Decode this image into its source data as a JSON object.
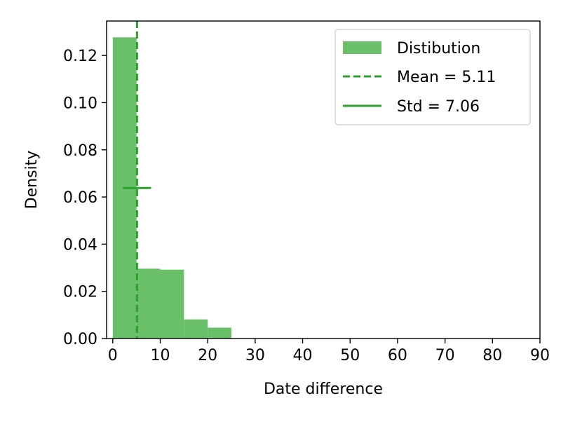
{
  "chart_data": {
    "type": "bar",
    "title": "",
    "xlabel": "Date difference",
    "ylabel": "Density",
    "xlim": [
      -1.3,
      90
    ],
    "ylim": [
      0,
      0.1346
    ],
    "x_ticks": [
      0,
      10,
      20,
      30,
      40,
      50,
      60,
      70,
      80,
      90
    ],
    "y_ticks": [
      0.0,
      0.02,
      0.04,
      0.06,
      0.08,
      0.1,
      0.12
    ],
    "x_tick_labels": [
      "0",
      "10",
      "20",
      "30",
      "40",
      "50",
      "60",
      "70",
      "80",
      "90"
    ],
    "y_tick_labels": [
      "0.00",
      "0.02",
      "0.04",
      "0.06",
      "0.08",
      "0.10",
      "0.12"
    ],
    "grid": false,
    "legend_position": "top-right",
    "series": [
      {
        "name": "Distibution",
        "kind": "histogram",
        "color": "#6abf69",
        "bins": [
          {
            "x0": 0,
            "x1": 5,
            "density": 0.1277
          },
          {
            "x0": 5,
            "x1": 10,
            "density": 0.0296
          },
          {
            "x0": 10,
            "x1": 15,
            "density": 0.0292
          },
          {
            "x0": 15,
            "x1": 20,
            "density": 0.0081
          },
          {
            "x0": 20,
            "x1": 25,
            "density": 0.0046
          }
        ]
      },
      {
        "name": "Mean = 5.11",
        "kind": "vline",
        "style": "dashed",
        "color": "#2ca02c",
        "x": 5.11
      },
      {
        "name": "Std = 7.06",
        "kind": "hline",
        "style": "solid",
        "color": "#2ca02c",
        "y": 0.0638,
        "x0": 2.16,
        "x1": 8.06
      }
    ]
  }
}
